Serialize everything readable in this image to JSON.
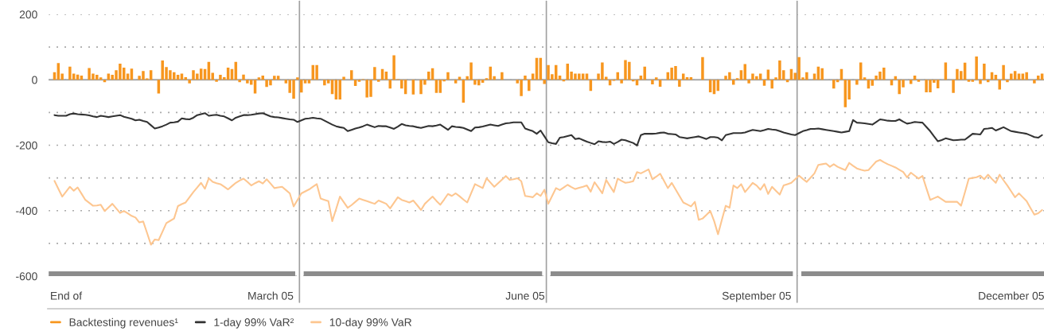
{
  "chart_data": {
    "type": "bar",
    "categories": [
      null,
      null,
      null,
      "End of",
      null,
      null,
      null,
      null,
      null,
      null,
      null,
      null,
      null,
      null,
      null,
      null,
      null,
      null,
      null,
      null,
      null,
      null,
      null,
      null,
      null,
      null,
      null,
      null,
      null,
      null,
      null,
      null,
      null,
      null,
      null,
      null,
      null,
      null,
      null,
      null,
      null,
      null,
      null,
      null,
      null,
      null,
      null,
      null,
      null,
      null,
      null,
      null,
      null,
      null,
      null,
      null,
      "March 05",
      null,
      null,
      null,
      null,
      null,
      null,
      null,
      null,
      null,
      null,
      null,
      null,
      null,
      null,
      null,
      null,
      null,
      null,
      null,
      null,
      null,
      null,
      null,
      null,
      null,
      null,
      null,
      null,
      null,
      null,
      null,
      null,
      null,
      null,
      null,
      null,
      null,
      null,
      null,
      null,
      null,
      null,
      null,
      null,
      null,
      null,
      null,
      null,
      null,
      null,
      null,
      null,
      null,
      null,
      null,
      null,
      null,
      null,
      null,
      null,
      null,
      null,
      null,
      null,
      null,
      "June 05",
      null,
      null,
      null,
      null,
      null,
      null,
      null,
      null,
      null,
      null,
      null,
      null,
      null,
      null,
      null,
      null,
      null,
      null,
      null,
      null,
      null,
      null,
      null,
      null,
      null,
      null,
      null,
      null,
      null,
      null,
      null,
      null,
      null,
      null,
      null,
      null,
      null,
      null,
      null,
      null,
      null,
      null,
      null,
      null,
      null,
      null,
      null,
      null,
      null,
      null,
      null,
      null,
      null,
      null,
      null,
      null,
      null,
      null,
      null,
      "September 05",
      null,
      null,
      null,
      null,
      null,
      null,
      null,
      null,
      null,
      null,
      null,
      null,
      null,
      null,
      null,
      null,
      null,
      null,
      null,
      null,
      null,
      null,
      null,
      null,
      null,
      null,
      null,
      null,
      null,
      null,
      null,
      null,
      null,
      null,
      null,
      null,
      null,
      null,
      null,
      null,
      null,
      null,
      null,
      null,
      null,
      null,
      null,
      null,
      null,
      null,
      null,
      null,
      null,
      null,
      null,
      null,
      null,
      null,
      null,
      null,
      null,
      null,
      null,
      null,
      null,
      "December 05",
      null,
      null,
      null,
      null,
      null,
      null,
      null,
      null
    ],
    "ylim": [
      -600,
      200
    ],
    "yticks": [
      200,
      {
        "value": 100,
        "label": null
      },
      0,
      {
        "value": -100,
        "label": null
      },
      -200,
      {
        "value": -300,
        "label": null
      },
      -400,
      {
        "value": -500,
        "label": null
      },
      -600
    ],
    "grid": "y",
    "legend": "bottom",
    "ref_lines": [
      {
        "axis": "y",
        "value": 0,
        "color": "#a6a6a6"
      }
    ],
    "series": [
      {
        "name": "Backtesting revenues¹",
        "color": "#f7961e",
        "values": [
          23,
          51,
          19,
          null,
          40,
          19,
          16,
          13,
          null,
          36,
          19,
          15,
          7,
          -7,
          19,
          15,
          29,
          49,
          37,
          19,
          34,
          null,
          12,
          27,
          4,
          29,
          null,
          -42,
          59,
          39,
          29,
          23,
          15,
          19,
          8,
          -11,
          29,
          19,
          34,
          33,
          55,
          21,
          -6,
          15,
          8,
          37,
          33,
          55,
          -7,
          16,
          -11,
          -15,
          -42,
          7,
          13,
          -22,
          -17,
          12,
          12,
          null,
          -11,
          -40,
          -58,
          7,
          -39,
          -11,
          -11,
          45,
          45,
          null,
          -17,
          -11,
          -44,
          -60,
          -60,
          9,
          null,
          29,
          -19,
          -6,
          2,
          -54,
          -52,
          39,
          -6,
          33,
          25,
          -27,
          75,
          2,
          -27,
          -44,
          null,
          -45,
          null,
          -44,
          -15,
          25,
          35,
          -40,
          -40,
          -5,
          23,
          null,
          -11,
          9,
          -70,
          11,
          53,
          -15,
          -17,
          -9,
          5,
          40,
          11,
          null,
          23,
          null,
          null,
          null,
          -11,
          -50,
          13,
          -34,
          19,
          67,
          67,
          -13,
          45,
          17,
          45,
          13,
          -5,
          49,
          25,
          19,
          19,
          19,
          19,
          -34,
          null,
          19,
          53,
          9,
          -17,
          -3,
          23,
          -11,
          60,
          55,
          -5,
          -17,
          13,
          40,
          null,
          -14,
          7,
          -21,
          null,
          23,
          37,
          42,
          -21,
          19,
          8,
          8,
          null,
          null,
          69,
          null,
          -38,
          -44,
          -34,
          null,
          12,
          23,
          -15,
          5,
          29,
          48,
          -11,
          19,
          11,
          19,
          -18,
          31,
          -27,
          7,
          59,
          29,
          -7,
          33,
          21,
          69,
          7,
          23,
          null,
          19,
          40,
          35,
          null,
          null,
          -27,
          -7,
          33,
          -84,
          -60,
          null,
          -15,
          53,
          7,
          -27,
          -18,
          13,
          25,
          37,
          null,
          -17,
          11,
          -44,
          -23,
          null,
          -13,
          13,
          -6,
          null,
          -38,
          -38,
          -9,
          -26,
          null,
          53,
          null,
          -40,
          33,
          27,
          52,
          -6,
          -6,
          71,
          -13,
          49,
          -7,
          23,
          15,
          -30,
          45,
          -7,
          19,
          27,
          19,
          19,
          23,
          null,
          -11,
          13,
          19
        ]
      },
      {
        "name": "1-day 99% VaR²",
        "type": "line",
        "color": "#333333",
        "values": [
          -108,
          -110,
          -110,
          -110,
          -105,
          -103,
          -105,
          -106,
          -107,
          -109,
          -112,
          -114,
          -110,
          -112,
          -114,
          -112,
          -110,
          -108,
          -113,
          -116,
          -119,
          -124,
          -122,
          -126,
          -129,
          -139,
          -149,
          -146,
          -142,
          -137,
          -131,
          -130,
          -128,
          -118,
          -120,
          -121,
          -116,
          -108,
          -105,
          -102,
          -110,
          -108,
          -107,
          -110,
          -112,
          -118,
          -124,
          -116,
          -112,
          -108,
          -108,
          -107,
          -105,
          -103,
          -102,
          -107,
          -112,
          -114,
          -115,
          -117,
          -119,
          -121,
          -122,
          -129,
          -124,
          -119,
          -118,
          -116,
          -118,
          -119,
          -125,
          -131,
          -137,
          -142,
          -145,
          -147,
          -157,
          -153,
          -149,
          -146,
          -142,
          -137,
          -141,
          -145,
          -141,
          -142,
          -142,
          -146,
          -150,
          -143,
          -135,
          -139,
          -141,
          -142,
          -145,
          -147,
          -144,
          -141,
          -142,
          -140,
          -137,
          -145,
          -153,
          -142,
          -144,
          -145,
          -147,
          -152,
          -157,
          -146,
          -145,
          -143,
          -140,
          -137,
          -139,
          -141,
          -137,
          -133,
          -132,
          -130,
          -130,
          -130,
          -149,
          -153,
          -157,
          -165,
          -155,
          -173,
          -191,
          -194,
          -196,
          -177,
          -175,
          -172,
          -169,
          -181,
          -179,
          -184,
          -189,
          -193,
          -197,
          -188,
          -190,
          -191,
          -189,
          -196,
          -190,
          -183,
          -185,
          -189,
          -193,
          -201,
          -169,
          -165,
          -165,
          -165,
          -164,
          -162,
          -161,
          -165,
          -166,
          -167,
          -175,
          -177,
          -179,
          -177,
          -175,
          -173,
          -177,
          -181,
          -175,
          -175,
          -177,
          -185,
          -169,
          -166,
          -163,
          -163,
          -163,
          -161,
          -157,
          -153,
          -155,
          -157,
          -154,
          -150,
          -152,
          -153,
          -157,
          -161,
          -164,
          -167,
          -169,
          -163,
          -157,
          -154,
          -150,
          -150,
          -149,
          -151,
          -153,
          -155,
          -157,
          -159,
          -161,
          -159,
          -157,
          -123,
          -131,
          -132,
          -133,
          -135,
          -137,
          -129,
          -121,
          -123,
          -125,
          -126,
          -126,
          -121,
          -128,
          -134,
          -132,
          -129,
          -130,
          -131,
          -144,
          -157,
          -173,
          -188,
          -184,
          -179,
          -182,
          -185,
          -184,
          -183,
          -183,
          -174,
          -165,
          -166,
          -167,
          -150,
          -149,
          -147,
          -155,
          -150,
          -145,
          -151,
          -157,
          -159,
          -161,
          -163,
          -165,
          -170,
          -175,
          -177,
          -169
        ]
      },
      {
        "name": "10-day 99% VaR",
        "type": "line",
        "color": "#fdc690",
        "values": [
          -309,
          -333,
          -357,
          -342,
          -327,
          -339,
          -329,
          -348,
          -367,
          -376,
          -385,
          -384,
          -382,
          -401,
          -390,
          -379,
          -393,
          -407,
          -401,
          -408,
          -416,
          -421,
          -436,
          -433,
          -468,
          -504,
          -488,
          -490,
          -464,
          -438,
          -431,
          -424,
          -386,
          -380,
          -375,
          -359,
          -343,
          -329,
          -315,
          -333,
          -301,
          -312,
          -316,
          -319,
          -327,
          -335,
          -325,
          -315,
          -308,
          -302,
          -312,
          -323,
          -316,
          -310,
          -317,
          -304,
          -317,
          -331,
          -329,
          -327,
          -337,
          -347,
          -387,
          -367,
          -347,
          -341,
          -335,
          -327,
          -319,
          -363,
          -367,
          -371,
          -432,
          -395,
          -357,
          -374,
          -391,
          -383,
          -373,
          -363,
          -367,
          -371,
          -375,
          -379,
          -369,
          -374,
          -379,
          -393,
          -376,
          -359,
          -367,
          -371,
          -375,
          -369,
          -383,
          -398,
          -379,
          -368,
          -357,
          -370,
          -382,
          -366,
          -349,
          -355,
          -347,
          -356,
          -366,
          -375,
          -347,
          -319,
          -325,
          -331,
          -301,
          -314,
          -327,
          -316,
          -305,
          -294,
          -306,
          -304,
          -301,
          -310,
          -355,
          -357,
          -359,
          -347,
          -355,
          -336,
          -379,
          -355,
          -331,
          -337,
          -329,
          -321,
          -328,
          -334,
          -330,
          -327,
          -323,
          -342,
          -313,
          -330,
          -347,
          -306,
          -325,
          -343,
          -302,
          -309,
          -315,
          -313,
          -310,
          -282,
          -286,
          -280,
          -274,
          -304,
          -296,
          -287,
          -309,
          -331,
          -315,
          -335,
          -355,
          -375,
          -381,
          -387,
          -373,
          -428,
          -424,
          -413,
          -401,
          -432,
          -472,
          -428,
          -385,
          -391,
          -323,
          -331,
          -319,
          -343,
          -329,
          -315,
          -323,
          -336,
          -319,
          -349,
          -327,
          -339,
          -351,
          -323,
          -319,
          -315,
          -304,
          -293,
          -303,
          -312,
          -299,
          -286,
          -260,
          -258,
          -256,
          -266,
          -258,
          -266,
          -271,
          -276,
          -254,
          -263,
          -271,
          -275,
          -278,
          -276,
          -263,
          -250,
          -245,
          -252,
          -258,
          -263,
          -268,
          -275,
          -282,
          -298,
          -284,
          -293,
          -302,
          -294,
          -331,
          -367,
          -362,
          -357,
          -365,
          -373,
          -373,
          -373,
          -373,
          -385,
          -344,
          -302,
          -300,
          -298,
          -293,
          -304,
          -290,
          -303,
          -315,
          -290,
          -307,
          -323,
          -341,
          -359,
          -347,
          -359,
          -371,
          -392,
          -412,
          -408,
          -398
        ]
      }
    ]
  }
}
